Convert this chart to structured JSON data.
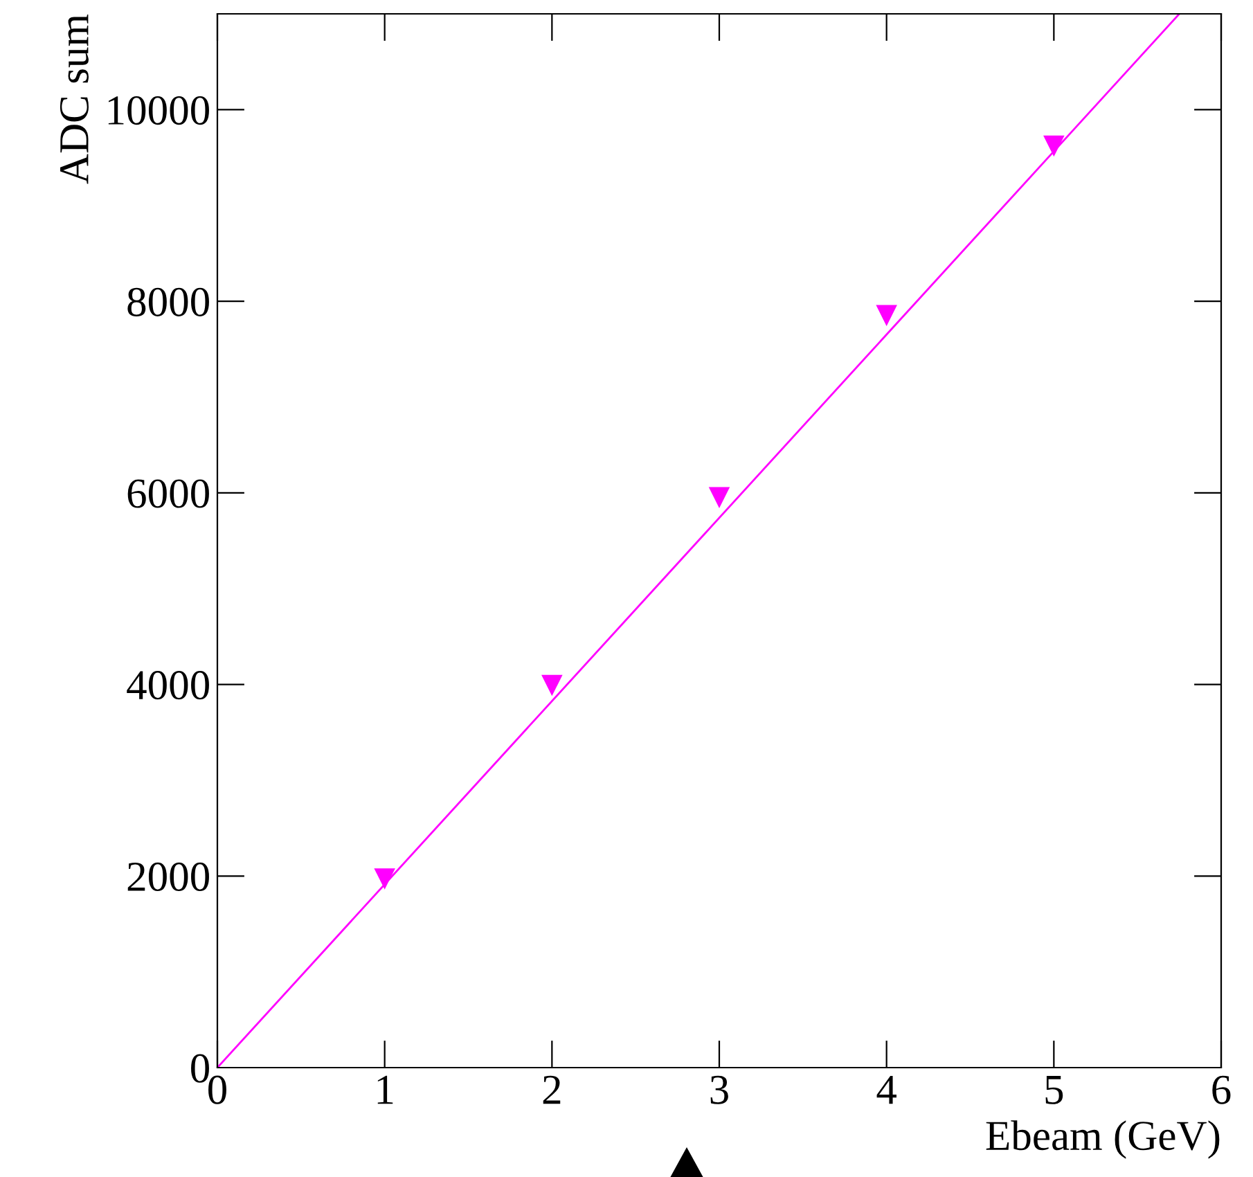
{
  "chart_data": {
    "type": "scatter",
    "xlabel": "Ebeam (GeV)",
    "ylabel": "ADC sum",
    "xlim": [
      0,
      6
    ],
    "ylim": [
      0,
      11000
    ],
    "xticks": [
      0,
      1,
      2,
      3,
      4,
      5,
      6
    ],
    "yticks": [
      0,
      2000,
      4000,
      6000,
      8000,
      10000
    ],
    "marker": "triangle",
    "series": [
      {
        "color": "#ff00ff",
        "x": [
          1,
          2,
          3,
          4,
          5
        ],
        "values": [
          1970,
          3990,
          5950,
          7850,
          9620
        ]
      },
      {
        "type": "line",
        "marker": "none",
        "color": "#ff00ff",
        "line_style": "solid",
        "x": [
          0,
          5.75
        ],
        "values": [
          0,
          11000
        ]
      }
    ]
  }
}
